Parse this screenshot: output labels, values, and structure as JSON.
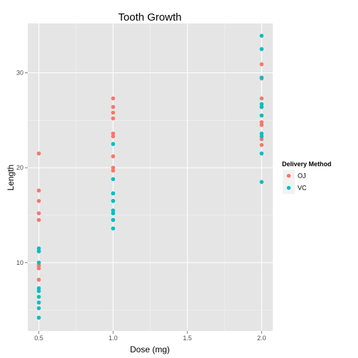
{
  "chart_data": {
    "type": "scatter",
    "title": "Tooth Growth",
    "xlabel": "Dose (mg)",
    "ylabel": "Length",
    "xlim": [
      0.425,
      2.075
    ],
    "ylim": [
      2.8,
      35.2
    ],
    "xticks": [
      0.5,
      1.0,
      1.5,
      2.0
    ],
    "xtick_labels": [
      "0.5",
      "1.0",
      "1.5",
      "2.0"
    ],
    "yticks": [
      10,
      20,
      30
    ],
    "ytick_labels": [
      "10",
      "20",
      "30"
    ],
    "grid": true,
    "panel_background": "#e5e5e5",
    "legend": {
      "title": "Delivery Method",
      "placement": "right",
      "entries": [
        {
          "label": "OJ",
          "color": "#f8766d"
        },
        {
          "label": "VC",
          "color": "#00bfc4"
        }
      ]
    },
    "series": [
      {
        "name": "OJ",
        "color": "#f8766d",
        "x": [
          0.5,
          0.5,
          0.5,
          0.5,
          0.5,
          0.5,
          0.5,
          0.5,
          0.5,
          0.5,
          1.0,
          1.0,
          1.0,
          1.0,
          1.0,
          1.0,
          1.0,
          1.0,
          1.0,
          1.0,
          2.0,
          2.0,
          2.0,
          2.0,
          2.0,
          2.0,
          2.0,
          2.0,
          2.0,
          2.0
        ],
        "y": [
          15.2,
          21.5,
          17.6,
          9.7,
          14.5,
          10.0,
          8.2,
          9.4,
          16.5,
          9.7,
          19.7,
          23.3,
          23.6,
          26.4,
          20.0,
          25.2,
          25.8,
          21.2,
          14.5,
          27.3,
          25.5,
          26.4,
          22.4,
          24.5,
          24.8,
          30.9,
          26.4,
          27.3,
          29.4,
          23.0
        ]
      },
      {
        "name": "VC",
        "color": "#00bfc4",
        "x": [
          0.5,
          0.5,
          0.5,
          0.5,
          0.5,
          0.5,
          0.5,
          0.5,
          0.5,
          0.5,
          1.0,
          1.0,
          1.0,
          1.0,
          1.0,
          1.0,
          1.0,
          1.0,
          1.0,
          1.0,
          2.0,
          2.0,
          2.0,
          2.0,
          2.0,
          2.0,
          2.0,
          2.0,
          2.0,
          2.0
        ],
        "y": [
          4.2,
          11.5,
          7.3,
          5.8,
          6.4,
          10.0,
          11.2,
          11.2,
          5.2,
          7.0,
          16.5,
          16.5,
          15.2,
          17.3,
          22.5,
          17.3,
          13.6,
          14.5,
          18.8,
          15.5,
          23.6,
          18.5,
          33.9,
          25.5,
          26.4,
          32.5,
          26.7,
          21.5,
          23.3,
          29.5
        ]
      }
    ]
  }
}
